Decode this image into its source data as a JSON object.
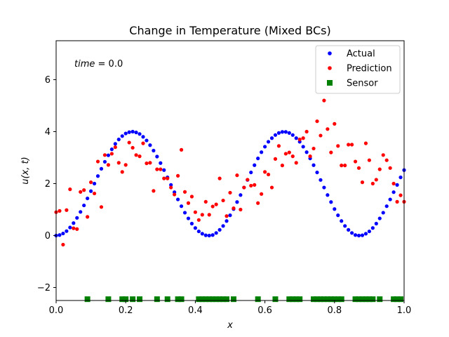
{
  "chart_data": {
    "type": "scatter",
    "title": "Change in Temperature (Mixed BCs)",
    "xlabel": "x",
    "ylabel": "u(x, t)",
    "xlim": [
      0.0,
      1.0
    ],
    "ylim": [
      -2.5,
      7.5
    ],
    "xticks": [
      0.0,
      0.2,
      0.4,
      0.6,
      0.8,
      1.0
    ],
    "xtick_labels": [
      "0.0",
      "0.2",
      "0.4",
      "0.6",
      "0.8",
      "1.0"
    ],
    "yticks": [
      -2,
      0,
      2,
      4,
      6
    ],
    "ytick_labels": [
      "−2",
      "0",
      "2",
      "4",
      "6"
    ],
    "grid": false,
    "legend_position": "top-right",
    "annotation": {
      "label": "time",
      "value": "0.0"
    },
    "colors": {
      "actual": "#0000ff",
      "prediction": "#ff0000",
      "sensor": "#008000"
    },
    "series": [
      {
        "name": "Actual",
        "marker": "circle",
        "x": [
          0.0,
          0.01,
          0.02,
          0.03,
          0.04,
          0.05,
          0.06,
          0.07,
          0.08,
          0.09,
          0.1,
          0.11,
          0.12,
          0.13,
          0.14,
          0.15,
          0.16,
          0.17,
          0.18,
          0.19,
          0.2,
          0.21,
          0.22,
          0.23,
          0.24,
          0.25,
          0.26,
          0.27,
          0.28,
          0.29,
          0.3,
          0.31,
          0.32,
          0.33,
          0.34,
          0.35,
          0.36,
          0.37,
          0.38,
          0.39,
          0.4,
          0.41,
          0.42,
          0.43,
          0.44,
          0.45,
          0.46,
          0.47,
          0.48,
          0.49,
          0.5,
          0.51,
          0.52,
          0.53,
          0.54,
          0.55,
          0.56,
          0.57,
          0.58,
          0.59,
          0.6,
          0.61,
          0.62,
          0.63,
          0.64,
          0.65,
          0.66,
          0.67,
          0.68,
          0.69,
          0.7,
          0.71,
          0.72,
          0.73,
          0.74,
          0.75,
          0.76,
          0.77,
          0.78,
          0.79,
          0.8,
          0.81,
          0.82,
          0.83,
          0.84,
          0.85,
          0.86,
          0.87,
          0.88,
          0.89,
          0.9,
          0.91,
          0.92,
          0.93,
          0.94,
          0.95,
          0.96,
          0.97,
          0.98,
          0.99,
          1.0
        ],
        "y": [
          0.0,
          0.02,
          0.08,
          0.17,
          0.31,
          0.48,
          0.68,
          0.91,
          1.16,
          1.43,
          1.71,
          2.0,
          2.29,
          2.57,
          2.84,
          3.09,
          3.32,
          3.53,
          3.7,
          3.83,
          3.93,
          3.98,
          4.0,
          3.97,
          3.91,
          3.8,
          3.66,
          3.48,
          3.27,
          3.04,
          2.79,
          2.52,
          2.24,
          1.95,
          1.67,
          1.39,
          1.13,
          0.88,
          0.66,
          0.46,
          0.29,
          0.16,
          0.07,
          0.01,
          0.0,
          0.02,
          0.1,
          0.22,
          0.37,
          0.56,
          0.78,
          1.02,
          1.29,
          1.56,
          1.85,
          2.14,
          2.43,
          2.71,
          2.97,
          3.21,
          3.42,
          3.61,
          3.75,
          3.87,
          3.95,
          3.99,
          3.99,
          3.95,
          3.87,
          3.75,
          3.61,
          3.42,
          3.21,
          2.97,
          2.71,
          2.43,
          2.14,
          1.85,
          1.56,
          1.29,
          1.02,
          0.78,
          0.56,
          0.37,
          0.22,
          0.1,
          0.02,
          0.0,
          0.01,
          0.07,
          0.16,
          0.29,
          0.46,
          0.66,
          0.88,
          1.13,
          1.39,
          1.67,
          1.95,
          2.24,
          2.52
        ]
      },
      {
        "name": "Prediction",
        "marker": "circle",
        "x": [
          0.0,
          0.01,
          0.02,
          0.03,
          0.04,
          0.05,
          0.06,
          0.07,
          0.08,
          0.09,
          0.1,
          0.11,
          0.12,
          0.13,
          0.14,
          0.15,
          0.16,
          0.17,
          0.18,
          0.19,
          0.2,
          0.21,
          0.22,
          0.23,
          0.24,
          0.25,
          0.26,
          0.27,
          0.28,
          0.29,
          0.3,
          0.31,
          0.32,
          0.33,
          0.34,
          0.35,
          0.36,
          0.37,
          0.38,
          0.39,
          0.4,
          0.41,
          0.42,
          0.43,
          0.44,
          0.45,
          0.46,
          0.47,
          0.48,
          0.49,
          0.5,
          0.51,
          0.52,
          0.53,
          0.54,
          0.55,
          0.56,
          0.57,
          0.58,
          0.59,
          0.6,
          0.61,
          0.62,
          0.63,
          0.64,
          0.65,
          0.66,
          0.67,
          0.68,
          0.69,
          0.7,
          0.71,
          0.72,
          0.73,
          0.74,
          0.75,
          0.76,
          0.77,
          0.78,
          0.79,
          0.8,
          0.81,
          0.82,
          0.83,
          0.84,
          0.85,
          0.86,
          0.87,
          0.88,
          0.89,
          0.9,
          0.91,
          0.92,
          0.93,
          0.94,
          0.95,
          0.96,
          0.97,
          0.98,
          0.99,
          1.0
        ],
        "y": [
          0.9,
          0.95,
          -0.35,
          0.98,
          1.78,
          0.28,
          0.25,
          1.68,
          1.75,
          0.72,
          2.05,
          1.62,
          2.85,
          1.1,
          3.1,
          2.72,
          3.15,
          3.4,
          2.8,
          2.45,
          2.72,
          3.58,
          3.38,
          3.1,
          3.05,
          3.55,
          2.78,
          2.8,
          1.72,
          2.55,
          2.55,
          2.2,
          2.2,
          1.85,
          1.58,
          2.3,
          3.3,
          1.68,
          1.25,
          1.5,
          0.9,
          0.6,
          0.8,
          1.3,
          0.8,
          1.12,
          1.2,
          2.2,
          1.35,
          0.75,
          1.65,
          1.05,
          2.32,
          1.0,
          1.85,
          2.15,
          1.92,
          1.95,
          1.25,
          1.6,
          2.45,
          2.35,
          1.85,
          2.95,
          3.45,
          2.7,
          3.15,
          3.2,
          3.05,
          2.8,
          3.7,
          3.75,
          4.0,
          3.05,
          3.35,
          4.4,
          3.85,
          5.2,
          4.1,
          3.2,
          4.3,
          3.45,
          2.7,
          2.7,
          3.5,
          3.5,
          2.85,
          2.6,
          2.05,
          3.55,
          2.9,
          2.0,
          2.15,
          2.55,
          3.1,
          2.9,
          2.6,
          2.0,
          1.3,
          1.55,
          1.3
        ]
      },
      {
        "name": "Sensor",
        "marker": "square",
        "x": [
          0.09,
          0.15,
          0.19,
          0.2,
          0.22,
          0.24,
          0.29,
          0.32,
          0.35,
          0.36,
          0.41,
          0.42,
          0.43,
          0.44,
          0.45,
          0.46,
          0.47,
          0.48,
          0.49,
          0.51,
          0.58,
          0.63,
          0.67,
          0.68,
          0.69,
          0.7,
          0.74,
          0.75,
          0.76,
          0.77,
          0.78,
          0.79,
          0.8,
          0.81,
          0.82,
          0.86,
          0.87,
          0.88,
          0.89,
          0.9,
          0.91,
          0.93,
          0.97,
          0.98,
          0.99
        ],
        "y": [
          -2.45,
          -2.45,
          -2.45,
          -2.45,
          -2.45,
          -2.45,
          -2.45,
          -2.45,
          -2.45,
          -2.45,
          -2.45,
          -2.45,
          -2.45,
          -2.45,
          -2.45,
          -2.45,
          -2.45,
          -2.45,
          -2.45,
          -2.45,
          -2.45,
          -2.45,
          -2.45,
          -2.45,
          -2.45,
          -2.45,
          -2.45,
          -2.45,
          -2.45,
          -2.45,
          -2.45,
          -2.45,
          -2.45,
          -2.45,
          -2.45,
          -2.45,
          -2.45,
          -2.45,
          -2.45,
          -2.45,
          -2.45,
          -2.45,
          -2.45,
          -2.45,
          -2.45
        ]
      }
    ]
  }
}
